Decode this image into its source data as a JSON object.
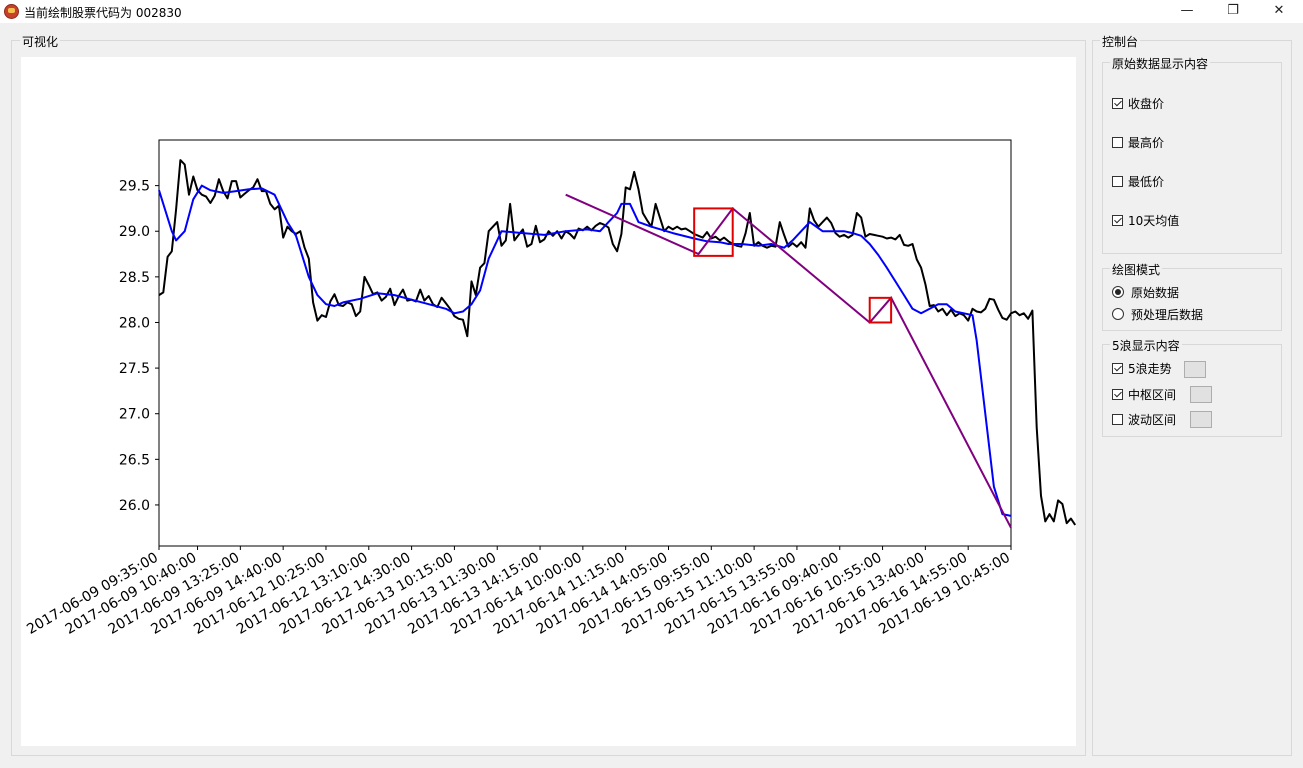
{
  "window": {
    "title": "当前绘制股票代码为 002830",
    "minimize_glyph": "—",
    "maximize_glyph": "❐",
    "close_glyph": "✕"
  },
  "visualization": {
    "group_title": "可视化"
  },
  "console": {
    "group_title": "控制台",
    "raw_display": {
      "title": "原始数据显示内容",
      "options": [
        {
          "label": "收盘价",
          "checked": true
        },
        {
          "label": "最高价",
          "checked": false
        },
        {
          "label": "最低价",
          "checked": false
        },
        {
          "label": "10天均值",
          "checked": true
        }
      ]
    },
    "plot_mode": {
      "title": "绘图模式",
      "options": [
        {
          "label": "原始数据",
          "selected": true
        },
        {
          "label": "预处理后数据",
          "selected": false
        }
      ]
    },
    "wave5": {
      "title": "5浪显示内容",
      "options": [
        {
          "label": "5浪走势",
          "checked": true
        },
        {
          "label": "中枢区间",
          "checked": true
        },
        {
          "label": "波动区间",
          "checked": false
        }
      ]
    }
  },
  "chart_data": {
    "type": "line",
    "title": "",
    "xlabel": "",
    "ylabel": "",
    "ylim": [
      25.55,
      30.0
    ],
    "yticks": [
      26.0,
      26.5,
      27.0,
      27.5,
      28.0,
      28.5,
      29.0,
      29.5
    ],
    "x_tick_labels": [
      "2017-06-09 09:35:00",
      "2017-06-09 10:40:00",
      "2017-06-09 13:25:00",
      "2017-06-09 14:40:00",
      "2017-06-12 10:25:00",
      "2017-06-12 13:10:00",
      "2017-06-12 14:30:00",
      "2017-06-13 10:15:00",
      "2017-06-13 11:30:00",
      "2017-06-13 14:15:00",
      "2017-06-14 10:00:00",
      "2017-06-14 11:15:00",
      "2017-06-14 14:05:00",
      "2017-06-15 09:55:00",
      "2017-06-15 11:10:00",
      "2017-06-15 13:55:00",
      "2017-06-16 09:40:00",
      "2017-06-16 10:55:00",
      "2017-06-16 13:40:00",
      "2017-06-16 14:55:00",
      "2017-06-19 10:45:00"
    ],
    "x_tick_positions": [
      0,
      9,
      19,
      29,
      39,
      49,
      59,
      69,
      79,
      89,
      99,
      109,
      119,
      129,
      139,
      149,
      159,
      169,
      179,
      189,
      199
    ],
    "x_max": 199,
    "series": [
      {
        "line_color": "#000000",
        "values": [
          28.3,
          28.33,
          28.72,
          28.78,
          29.24,
          29.78,
          29.73,
          29.4,
          29.6,
          29.45,
          29.4,
          29.38,
          29.31,
          29.39,
          29.57,
          29.44,
          29.36,
          29.55,
          29.55,
          29.37,
          29.41,
          29.45,
          29.48,
          29.57,
          29.44,
          29.44,
          29.3,
          29.24,
          29.28,
          28.93,
          29.05,
          29.0,
          28.97,
          29.0,
          28.82,
          28.7,
          28.22,
          28.02,
          28.08,
          28.06,
          28.23,
          28.31,
          28.19,
          28.18,
          28.22,
          28.2,
          28.07,
          28.12,
          28.5,
          28.41,
          28.31,
          28.33,
          28.24,
          28.28,
          28.37,
          28.19,
          28.29,
          28.36,
          28.24,
          28.25,
          28.23,
          28.36,
          28.24,
          28.29,
          28.2,
          28.17,
          28.27,
          28.21,
          28.15,
          28.07,
          28.04,
          28.03,
          27.85,
          28.45,
          28.3,
          28.6,
          28.65,
          29.0,
          29.05,
          29.1,
          28.84,
          28.9,
          29.3,
          28.9,
          28.96,
          29.02,
          28.83,
          28.86,
          29.06,
          28.88,
          28.91,
          29.0,
          28.95,
          29.0,
          28.92,
          29.0,
          28.97,
          28.92,
          29.03,
          29.01,
          29.05,
          29.01,
          29.06,
          29.09,
          29.07,
          29.04,
          28.86,
          28.78,
          28.97,
          29.48,
          29.46,
          29.65,
          29.46,
          29.2,
          29.12,
          29.05,
          29.3,
          29.15,
          29.0,
          29.05,
          29.02,
          29.05,
          29.02,
          29.03,
          29.0,
          28.97,
          28.95,
          28.93,
          28.99,
          28.92,
          28.94,
          28.9,
          28.93,
          28.89,
          28.86,
          28.84,
          28.83,
          28.98,
          29.2,
          28.84,
          28.88,
          28.84,
          28.82,
          28.84,
          28.83,
          29.1,
          28.96,
          28.83,
          28.87,
          28.83,
          28.88,
          28.82,
          29.25,
          29.12,
          29.05,
          29.1,
          29.15,
          29.09,
          28.98,
          28.94,
          28.96,
          28.93,
          28.96,
          29.2,
          29.15,
          28.94,
          28.97,
          28.96,
          28.95,
          28.94,
          28.92,
          28.93,
          28.91,
          28.96,
          28.85,
          28.84,
          28.86,
          28.69,
          28.6,
          28.42,
          28.18,
          28.19,
          28.12,
          28.15,
          28.08,
          28.14,
          28.07,
          28.1,
          28.08,
          28.02,
          28.15,
          28.12,
          28.11,
          28.15,
          28.26,
          28.25,
          28.14,
          28.05,
          28.03,
          28.1,
          28.12,
          28.08,
          28.1,
          28.04,
          28.13,
          26.85,
          26.1,
          25.82,
          25.9,
          25.82,
          26.05,
          26.01,
          25.8,
          25.85,
          25.78
        ]
      },
      {
        "line_color": "#0000ff",
        "points": [
          [
            0,
            29.45
          ],
          [
            3,
            29.0
          ],
          [
            4,
            28.9
          ],
          [
            6,
            29.0
          ],
          [
            8,
            29.35
          ],
          [
            10,
            29.5
          ],
          [
            12,
            29.45
          ],
          [
            15,
            29.42
          ],
          [
            18,
            29.44
          ],
          [
            21,
            29.46
          ],
          [
            24,
            29.47
          ],
          [
            27,
            29.4
          ],
          [
            30,
            29.1
          ],
          [
            32,
            28.95
          ],
          [
            33,
            28.8
          ],
          [
            35,
            28.5
          ],
          [
            37,
            28.3
          ],
          [
            39,
            28.2
          ],
          [
            41,
            28.18
          ],
          [
            43,
            28.22
          ],
          [
            47,
            28.26
          ],
          [
            51,
            28.32
          ],
          [
            55,
            28.3
          ],
          [
            59,
            28.25
          ],
          [
            63,
            28.2
          ],
          [
            67,
            28.15
          ],
          [
            69,
            28.1
          ],
          [
            71,
            28.12
          ],
          [
            73,
            28.2
          ],
          [
            75,
            28.35
          ],
          [
            77,
            28.7
          ],
          [
            79,
            28.9
          ],
          [
            80,
            29.0
          ],
          [
            85,
            28.98
          ],
          [
            90,
            28.96
          ],
          [
            95,
            29.0
          ],
          [
            100,
            29.02
          ],
          [
            103,
            29.0
          ],
          [
            105,
            29.1
          ],
          [
            107,
            29.2
          ],
          [
            108,
            29.3
          ],
          [
            110,
            29.3
          ],
          [
            112,
            29.1
          ],
          [
            115,
            29.05
          ],
          [
            120,
            28.98
          ],
          [
            125,
            28.92
          ],
          [
            128,
            28.89
          ],
          [
            131,
            28.88
          ],
          [
            133,
            28.86
          ],
          [
            136,
            28.86
          ],
          [
            140,
            28.84
          ],
          [
            143,
            28.86
          ],
          [
            146,
            28.82
          ],
          [
            148,
            28.9
          ],
          [
            150,
            29.0
          ],
          [
            152,
            29.1
          ],
          [
            155,
            29.0
          ],
          [
            160,
            29.0
          ],
          [
            162,
            28.98
          ],
          [
            164,
            28.95
          ],
          [
            166,
            28.86
          ],
          [
            168,
            28.74
          ],
          [
            170,
            28.6
          ],
          [
            172,
            28.45
          ],
          [
            174,
            28.3
          ],
          [
            176,
            28.15
          ],
          [
            178,
            28.1
          ],
          [
            180,
            28.15
          ],
          [
            182,
            28.2
          ],
          [
            184,
            28.2
          ],
          [
            186,
            28.12
          ],
          [
            188,
            28.1
          ],
          [
            190,
            28.08
          ],
          [
            191,
            27.8
          ],
          [
            193,
            27.0
          ],
          [
            195,
            26.2
          ],
          [
            197,
            25.9
          ],
          [
            199,
            25.88
          ]
        ]
      },
      {
        "line_color": "#800080",
        "points": [
          [
            95,
            29.4
          ],
          [
            126,
            28.75
          ],
          [
            134,
            29.25
          ],
          [
            166,
            28.0
          ],
          [
            171,
            28.27
          ],
          [
            199,
            25.75
          ]
        ]
      }
    ],
    "highlight_boxes": [
      {
        "x0": 125,
        "x1": 134,
        "y0": 28.73,
        "y1": 29.25,
        "color": "#e00000"
      },
      {
        "x0": 166,
        "x1": 171,
        "y0": 28.0,
        "y1": 28.27,
        "color": "#e00000"
      }
    ],
    "grid": false,
    "legend": "none"
  }
}
